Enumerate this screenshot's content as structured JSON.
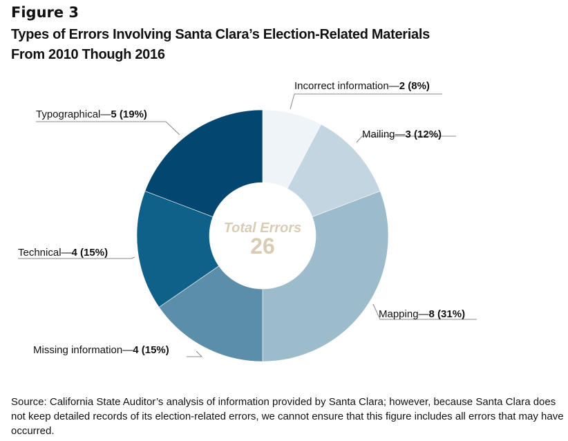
{
  "figure_label": "Figure 3",
  "chart_data": {
    "type": "pie",
    "title": "Types of Errors Involving Santa Clara’s Election-Related Materials From 2010 Though 2016",
    "title_lines": [
      "Types of Errors Involving Santa Clara’s Election-Related Materials",
      "From 2010 Though 2016"
    ],
    "center_label": "Total Errors",
    "total": 26,
    "slices": [
      {
        "name": "Incorrect information",
        "value": 2,
        "pct": "8%",
        "color": "#eef4f8"
      },
      {
        "name": "Mailing",
        "value": 3,
        "pct": "12%",
        "color": "#c2d5e0"
      },
      {
        "name": "Mapping",
        "value": 8,
        "pct": "31%",
        "color": "#9dbccb"
      },
      {
        "name": "Missing information",
        "value": 4,
        "pct": "15%",
        "color": "#5b8ea8"
      },
      {
        "name": "Technical",
        "value": 4,
        "pct": "15%",
        "color": "#10618a"
      },
      {
        "name": "Typographical",
        "value": 5,
        "pct": "19%",
        "color": "#03466f"
      }
    ]
  },
  "source": "Source:  California State Auditor’s analysis of information provided by Santa Clara; however, because Santa Clara does not keep detailed records of its election-related errors, we cannot ensure that this figure includes all errors that may have occurred."
}
